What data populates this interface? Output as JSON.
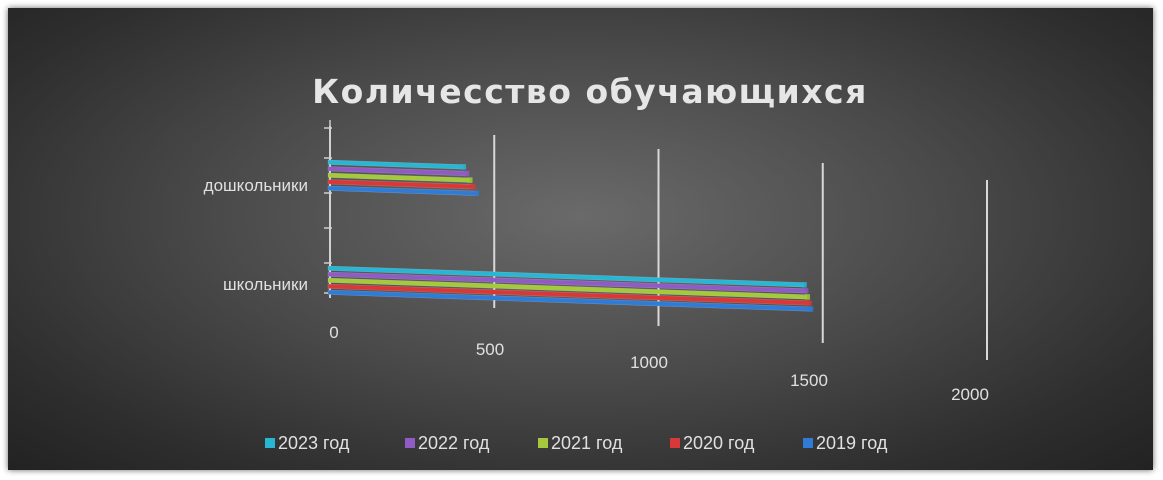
{
  "chart_data": {
    "type": "bar",
    "orientation": "horizontal",
    "title": "Количесство обучающихся",
    "categories": [
      "дошкольники",
      "школьники"
    ],
    "series": [
      {
        "name": "2023 год",
        "color": "#29b6d4",
        "values": [
          410,
          1460
        ]
      },
      {
        "name": "2022 год",
        "color": "#8e5cc4",
        "values": [
          420,
          1465
        ]
      },
      {
        "name": "2021 год",
        "color": "#a4c93c",
        "values": [
          430,
          1470
        ]
      },
      {
        "name": "2020 год",
        "color": "#d83838",
        "values": [
          440,
          1475
        ]
      },
      {
        "name": "2019 год",
        "color": "#2f7bd6",
        "values": [
          450,
          1480
        ]
      }
    ],
    "x_ticks": [
      "0",
      "500",
      "1000",
      "1500",
      "2000"
    ],
    "xlim": [
      0,
      2000
    ],
    "grid": true,
    "legend": "bottom"
  }
}
